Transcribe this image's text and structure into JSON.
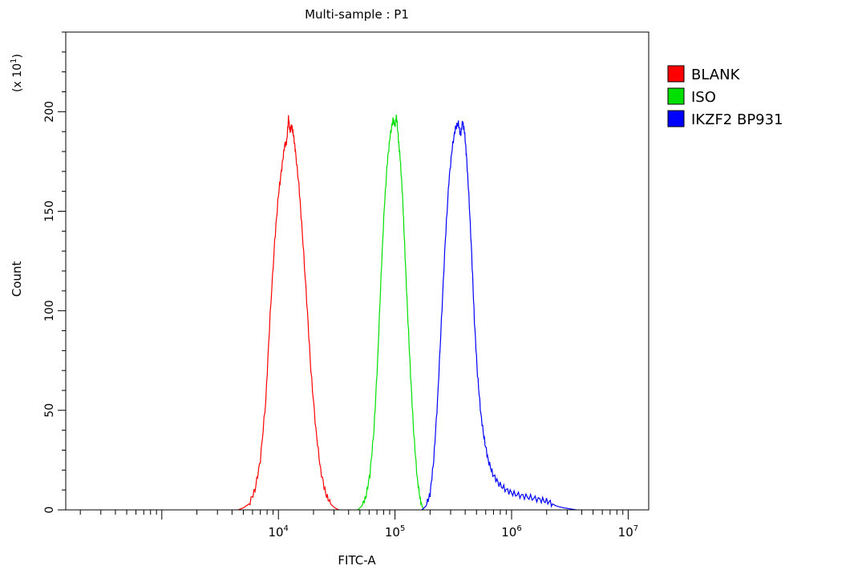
{
  "chart_data": {
    "type": "line",
    "title": "Multi-sample : P1",
    "xlabel": "FITC-A",
    "ylabel": "Count",
    "y_multiplier": "(x 10",
    "y_multiplier_exp": "1",
    "y_multiplier_close": ")",
    "xscale": "log",
    "xlim": [
      150,
      15000000
    ],
    "ylim": [
      0,
      240
    ],
    "yticks": [
      0,
      50,
      100,
      150,
      200
    ],
    "ytick_labels": [
      "0",
      "50",
      "100",
      "150",
      "200"
    ],
    "xticks": [
      10000,
      100000,
      1000000,
      10000000
    ],
    "xtick_base": "10",
    "xtick_exps": [
      "4",
      "5",
      "6",
      "7"
    ],
    "legend_position": "right",
    "series": [
      {
        "name": "BLANK",
        "color": "#ff0000",
        "x": [
          4500,
          5000,
          5600,
          6300,
          7000,
          7800,
          8500,
          9300,
          10000,
          10700,
          11300,
          11800,
          12200,
          12600,
          13000,
          13500,
          14000,
          15000,
          16000,
          17500,
          19000,
          21000,
          23000,
          25500,
          28000,
          30500,
          33000
        ],
        "y": [
          0,
          1,
          3,
          10,
          25,
          55,
          98,
          135,
          158,
          172,
          183,
          185,
          197,
          190,
          193,
          188,
          180,
          163,
          140,
          105,
          70,
          40,
          20,
          8,
          3,
          1,
          0
        ]
      },
      {
        "name": "ISO",
        "color": "#00e000",
        "x": [
          48000,
          52000,
          56000,
          61000,
          66000,
          71000,
          76000,
          81000,
          86000,
          91000,
          96000,
          100000,
          103000,
          107000,
          111000,
          116000,
          121000,
          128000,
          136000,
          145000,
          155000,
          165000,
          175000
        ],
        "y": [
          0,
          2,
          6,
          18,
          40,
          75,
          118,
          152,
          175,
          188,
          196,
          193,
          198,
          186,
          176,
          158,
          133,
          100,
          68,
          38,
          16,
          5,
          0
        ]
      },
      {
        "name": "IKZF2 BP931",
        "color": "#0000ff",
        "x": [
          170000,
          185000,
          200000,
          215000,
          232000,
          250000,
          270000,
          290000,
          310000,
          330000,
          350000,
          365000,
          380000,
          395000,
          410000,
          430000,
          455000,
          480000,
          510000,
          545000,
          585000,
          630000,
          690000,
          780000,
          900000,
          1050000,
          1250000,
          1500000,
          1800000,
          2100000,
          2400000,
          2800000,
          3200000,
          3600000
        ],
        "y": [
          0,
          2,
          8,
          25,
          55,
          95,
          135,
          165,
          182,
          192,
          194,
          188,
          195,
          190,
          178,
          158,
          128,
          95,
          68,
          48,
          35,
          25,
          18,
          13,
          10,
          8,
          7,
          6,
          5,
          4,
          2,
          1,
          0.5,
          0
        ]
      }
    ]
  }
}
